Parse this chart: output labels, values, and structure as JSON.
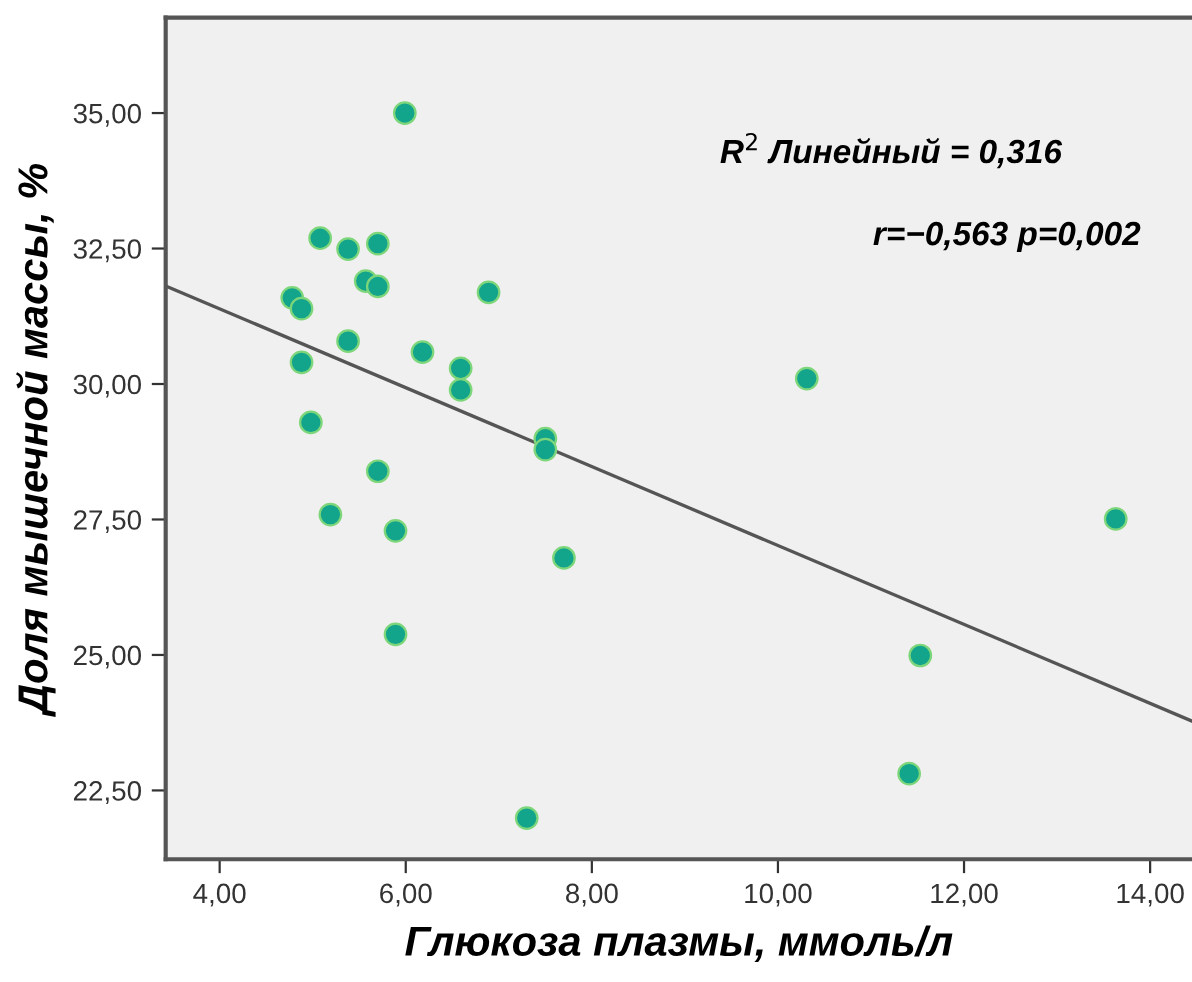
{
  "chart_data": {
    "type": "scatter",
    "xlabel": "Глюкоза плазмы, ммоль/л",
    "ylabel": "Доля мышечной массы, %",
    "annotations": [
      "R$^{2}$ Линейный = 0,316",
      "r=−0,563 p=0,002"
    ],
    "xlim": [
      3.42,
      14.45
    ],
    "ylim": [
      21.23,
      36.76
    ],
    "xticks": [
      {
        "value": 4,
        "label": "4,00"
      },
      {
        "value": 6,
        "label": "6,00"
      },
      {
        "value": 8,
        "label": "8,00"
      },
      {
        "value": 10,
        "label": "10,00"
      },
      {
        "value": 12,
        "label": "12,00"
      },
      {
        "value": 14,
        "label": "14,00"
      }
    ],
    "yticks": [
      {
        "value": 22.5,
        "label": "22,50"
      },
      {
        "value": 25,
        "label": "25,00"
      },
      {
        "value": 27.5,
        "label": "27,50"
      },
      {
        "value": 30,
        "label": "30,00"
      },
      {
        "value": 32.5,
        "label": "32,50"
      },
      {
        "value": 35,
        "label": "35,00"
      }
    ],
    "grid": false,
    "series": [
      {
        "marker": "circle",
        "color": "#13a48c",
        "x": [
          5.99,
          5.08,
          5.38,
          5.7,
          5.57,
          5.7,
          4.78,
          4.88,
          6.89,
          5.38,
          6.18,
          6.59,
          4.88,
          6.59,
          4.98,
          7.5,
          7.5,
          5.7,
          5.19,
          5.89,
          7.7,
          5.89,
          7.3,
          10.31,
          13.63,
          11.53,
          11.41
        ],
        "values": [
          35.0,
          32.69,
          32.49,
          32.59,
          31.9,
          31.8,
          31.59,
          31.39,
          31.69,
          30.79,
          30.59,
          30.29,
          30.4,
          29.89,
          29.29,
          28.99,
          28.79,
          28.39,
          27.59,
          27.29,
          26.79,
          25.38,
          21.99,
          30.1,
          27.51,
          24.99,
          22.81
        ]
      },
      {
        "type": "line",
        "color": "#555555",
        "x": [
          3.42,
          14.45
        ],
        "values": [
          31.81,
          23.78
        ]
      }
    ]
  }
}
